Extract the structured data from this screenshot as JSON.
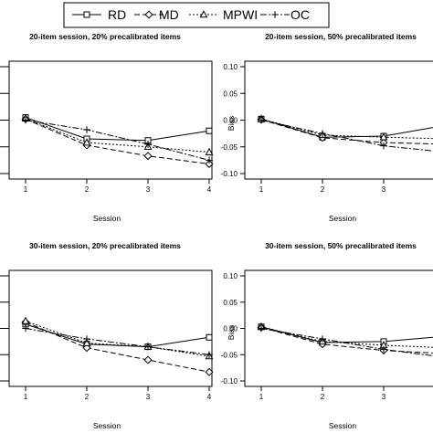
{
  "legend": [
    {
      "label": "RD",
      "marker": "square",
      "dash": ""
    },
    {
      "label": "MD",
      "marker": "diamond",
      "dash": "6,3"
    },
    {
      "label": "MPWI",
      "marker": "triangle",
      "dash": "2,2"
    },
    {
      "label": "OC",
      "marker": "plus",
      "dash": "7,2,2,2"
    }
  ],
  "chart_data": [
    {
      "type": "line",
      "title": "20-item session, 20% precalibrated items",
      "xlabel": "Session",
      "ylabel": "",
      "x": [
        1,
        2,
        3,
        4
      ],
      "xticks": [
        1,
        2,
        3,
        4
      ],
      "xlim": [
        1,
        4
      ],
      "ylim": [
        -0.1,
        0.1
      ],
      "yticks": [],
      "series": [
        {
          "name": "RD",
          "values": [
            0.005,
            -0.035,
            -0.038,
            -0.02
          ]
        },
        {
          "name": "MD",
          "values": [
            0.002,
            -0.047,
            -0.067,
            -0.082
          ]
        },
        {
          "name": "MPWI",
          "values": [
            0.003,
            -0.042,
            -0.05,
            -0.06
          ]
        },
        {
          "name": "OC",
          "values": [
            0.0,
            -0.018,
            -0.045,
            -0.075
          ]
        }
      ]
    },
    {
      "type": "line",
      "title": "20-item session, 50% precalibrated items",
      "xlabel": "Session",
      "ylabel": "Bias",
      "x": [
        1,
        2,
        3,
        4
      ],
      "xticks": [
        1,
        2,
        3
      ],
      "xlim": [
        1,
        4
      ],
      "ylim": [
        -0.1,
        0.1
      ],
      "yticks": [
        "0.10",
        "0.05",
        "0.00",
        "-0.05",
        "-0.10"
      ],
      "series": [
        {
          "name": "RD",
          "values": [
            0.002,
            -0.032,
            -0.03,
            -0.01
          ]
        },
        {
          "name": "MD",
          "values": [
            0.001,
            -0.033,
            -0.042,
            -0.045
          ]
        },
        {
          "name": "MPWI",
          "values": [
            0.002,
            -0.028,
            -0.032,
            -0.035
          ]
        },
        {
          "name": "OC",
          "values": [
            0.0,
            -0.025,
            -0.048,
            -0.06
          ]
        }
      ]
    },
    {
      "type": "line",
      "title": "30-item session, 20% precalibrated items",
      "xlabel": "Session",
      "ylabel": "",
      "x": [
        1,
        2,
        3,
        4
      ],
      "xticks": [
        1,
        2,
        3,
        4
      ],
      "xlim": [
        1,
        4
      ],
      "ylim": [
        -0.1,
        0.1
      ],
      "yticks": [],
      "series": [
        {
          "name": "RD",
          "values": [
            0.008,
            -0.03,
            -0.035,
            -0.017
          ]
        },
        {
          "name": "MD",
          "values": [
            0.012,
            -0.037,
            -0.06,
            -0.083
          ]
        },
        {
          "name": "MPWI",
          "values": [
            0.014,
            -0.028,
            -0.035,
            -0.053
          ]
        },
        {
          "name": "OC",
          "values": [
            0.0,
            -0.02,
            -0.035,
            -0.05
          ]
        }
      ]
    },
    {
      "type": "line",
      "title": "30-item session, 50% precalibrated items",
      "xlabel": "Session",
      "ylabel": "Bias",
      "x": [
        1,
        2,
        3,
        4
      ],
      "xticks": [
        1,
        2,
        3
      ],
      "xlim": [
        1,
        4
      ],
      "ylim": [
        -0.1,
        0.1
      ],
      "yticks": [
        "0.10",
        "0.05",
        "0.00",
        "-0.05",
        "-0.10"
      ],
      "series": [
        {
          "name": "RD",
          "values": [
            0.003,
            -0.027,
            -0.025,
            -0.015
          ]
        },
        {
          "name": "MD",
          "values": [
            0.002,
            -0.03,
            -0.042,
            -0.048
          ]
        },
        {
          "name": "MPWI",
          "values": [
            0.003,
            -0.025,
            -0.032,
            -0.037
          ]
        },
        {
          "name": "OC",
          "values": [
            0.0,
            -0.02,
            -0.04,
            -0.055
          ]
        }
      ]
    }
  ]
}
